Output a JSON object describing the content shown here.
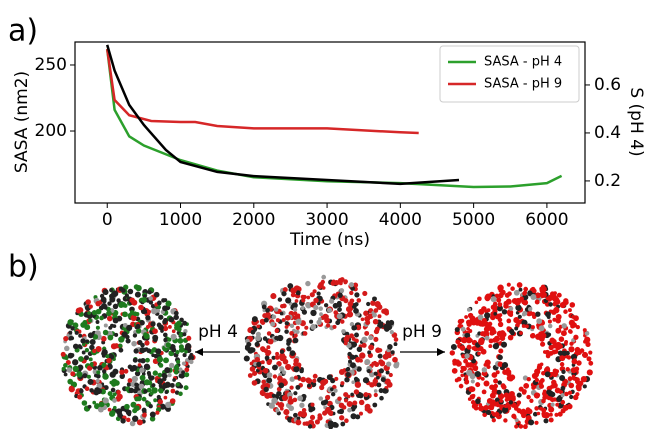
{
  "chart_data": {
    "type": "line",
    "x_label": "Time (ns)",
    "y_label": "SASA (nm2)",
    "y2_label": "S (pH 4)",
    "xlim": [
      -440,
      6520
    ],
    "xticks": [
      0,
      1000,
      2000,
      3000,
      4000,
      5000,
      6000
    ],
    "ylim": [
      145.5,
      267.4
    ],
    "yticks": [
      200,
      250
    ],
    "y2lim": [
      0.108,
      0.779
    ],
    "y2ticks": [
      0.2,
      0.4,
      0.6
    ],
    "legend": "upper right",
    "series": [
      {
        "name": "SASA - pH 4",
        "color": "#2ca02c",
        "x": [
          0,
          100,
          300,
          500,
          1000,
          1500,
          2000,
          3000,
          4000,
          5000,
          5500,
          6000,
          6200
        ],
        "values": [
          262,
          216,
          196,
          189,
          178,
          170,
          165,
          162,
          160.6,
          157.6,
          158,
          160.6,
          166
        ]
      },
      {
        "name": "SASA - pH 9",
        "color": "#d62728",
        "x": [
          0,
          100,
          300,
          600,
          1000,
          1200,
          1500,
          2000,
          3000,
          4000,
          4250
        ],
        "values": [
          262,
          223.5,
          212,
          207.6,
          206.8,
          206.8,
          203.8,
          202,
          202,
          199,
          198.5
        ]
      },
      {
        "color": "#000000",
        "axis": "y2",
        "x": [
          0,
          100,
          300,
          500,
          800,
          1000,
          1500,
          2000,
          3000,
          4000,
          4800
        ],
        "values": [
          0.767,
          0.66,
          0.517,
          0.433,
          0.329,
          0.279,
          0.2375,
          0.22,
          0.204,
          0.1875,
          0.204
        ]
      }
    ]
  },
  "panel_labels": [
    "a)",
    "b)"
  ],
  "arrows": [
    "pH 4",
    "pH 9"
  ]
}
